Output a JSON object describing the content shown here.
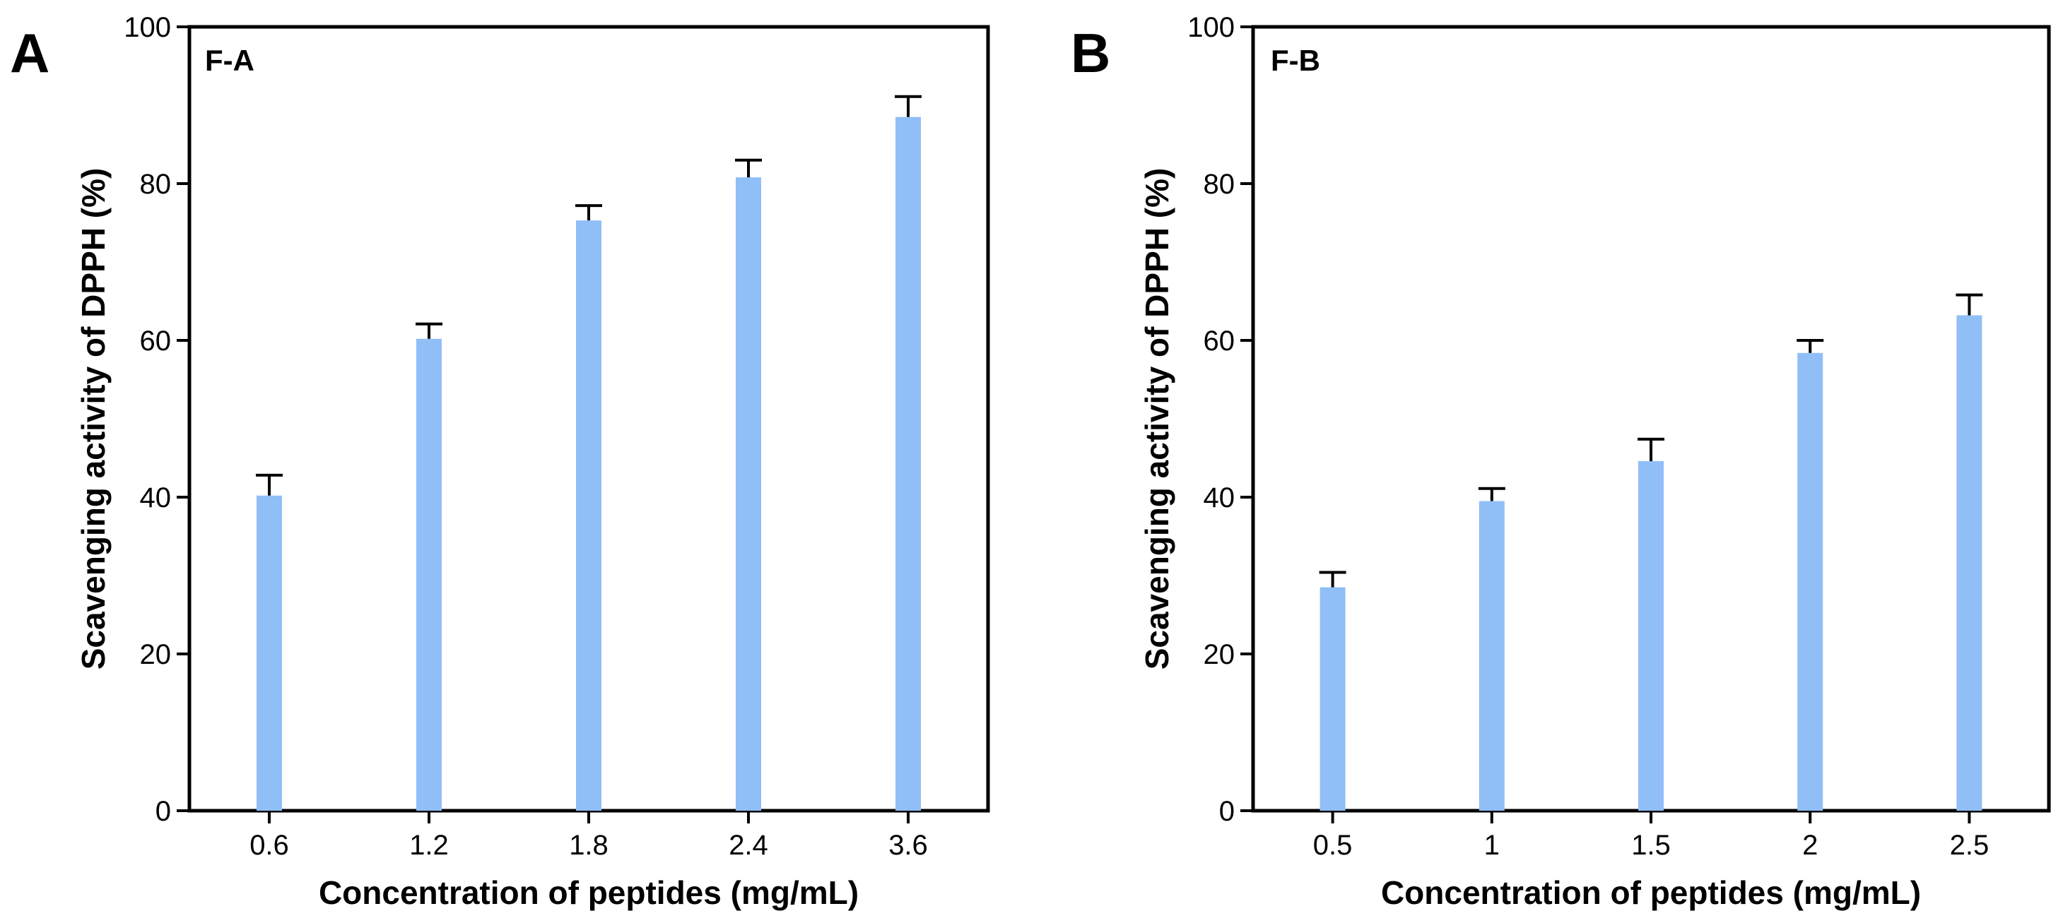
{
  "chart_data": [
    {
      "type": "bar",
      "panel_label": "A",
      "inset_label": "F-A",
      "categories": [
        "0.6",
        "1.2",
        "1.8",
        "2.4",
        "3.6"
      ],
      "values": [
        40.2,
        60.2,
        75.3,
        80.8,
        88.5
      ],
      "errors": [
        2.6,
        1.9,
        1.9,
        2.2,
        2.6
      ],
      "xlabel": "Concentration of peptides (mg/mL)",
      "ylabel": "Scavenging activity of DPPH (%)",
      "ylim": [
        0,
        100
      ],
      "yticks": [
        "0",
        "20",
        "40",
        "60",
        "80",
        "100"
      ],
      "grid": false,
      "bar_color": "#90BEF7"
    },
    {
      "type": "bar",
      "panel_label": "B",
      "inset_label": "F-B",
      "categories": [
        "0.5",
        "1",
        "1.5",
        "2",
        "2.5"
      ],
      "values": [
        28.5,
        39.5,
        44.6,
        58.4,
        63.2
      ],
      "errors": [
        1.9,
        1.6,
        2.8,
        1.6,
        2.6
      ],
      "xlabel": "Concentration of peptides (mg/mL)",
      "ylabel": "Scavenging activity of DPPH (%)",
      "ylim": [
        0,
        100
      ],
      "yticks": [
        "0",
        "20",
        "40",
        "60",
        "80",
        "100"
      ],
      "grid": false,
      "bar_color": "#90BEF7"
    }
  ]
}
